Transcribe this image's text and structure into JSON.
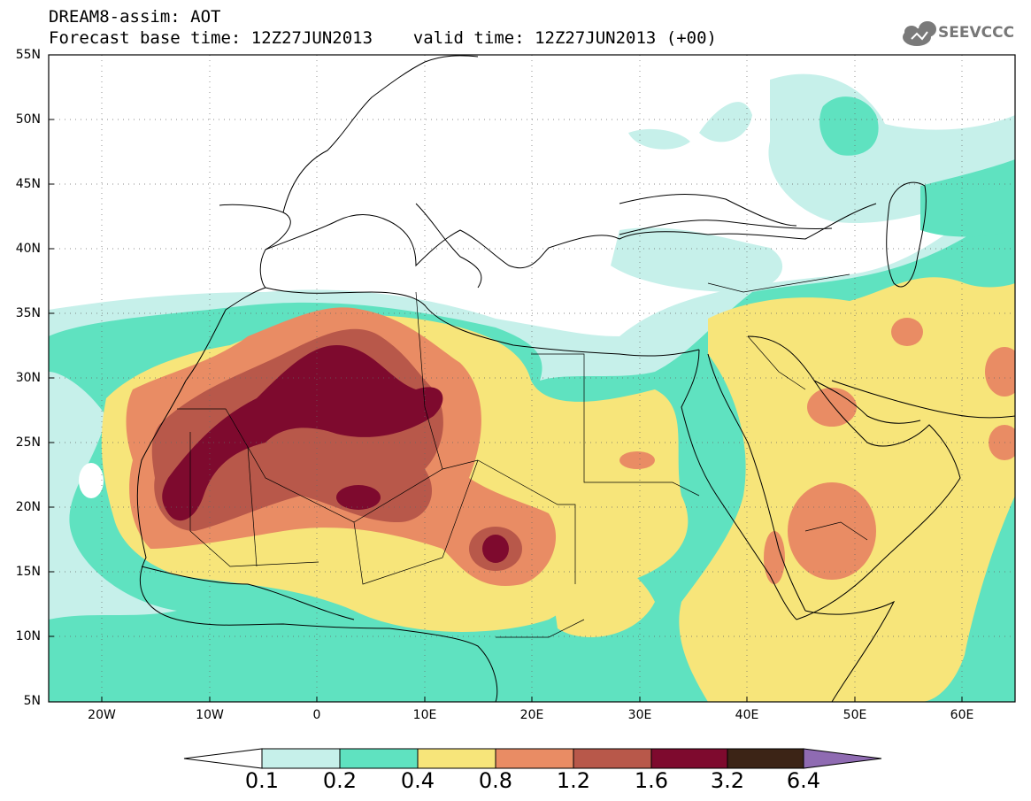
{
  "title": {
    "line1": "DREAM8-assim: AOT",
    "line2": "Forecast base time: 12Z27JUN2013    valid time: 12Z27JUN2013 (+00)"
  },
  "logo": {
    "text": "SEEVCCC"
  },
  "map": {
    "latitude_labels": [
      "55N",
      "50N",
      "45N",
      "40N",
      "35N",
      "30N",
      "25N",
      "20N",
      "15N",
      "10N",
      "5N"
    ],
    "longitude_labels": [
      "20W",
      "10W",
      "0",
      "10E",
      "20E",
      "30E",
      "40E",
      "50E",
      "60E"
    ],
    "extent": {
      "lon": [
        -25,
        65
      ],
      "lat": [
        5,
        55
      ]
    }
  },
  "colorbar": {
    "labels": [
      "0.1",
      "0.2",
      "0.4",
      "0.8",
      "1.2",
      "1.6",
      "3.2",
      "6.4"
    ],
    "colors": [
      "#ffffff",
      "#c6f0ea",
      "#5fe2c0",
      "#f7e57a",
      "#e98c64",
      "#b8584a",
      "#7e0a2e",
      "#3c2416",
      "#8f6bb2"
    ]
  }
}
